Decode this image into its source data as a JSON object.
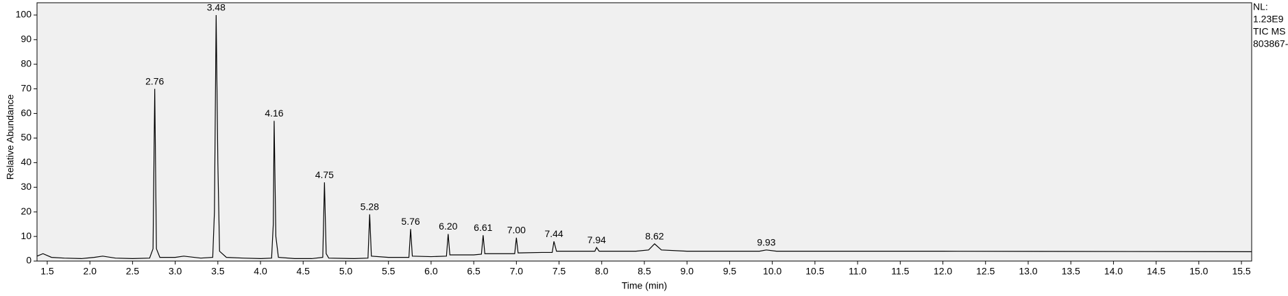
{
  "chart_data": {
    "type": "line",
    "x_label": "Time (min)",
    "y_label": "Relative Abundance",
    "side_notes": [
      "NL:",
      "1.23E9",
      "TIC  MS",
      "803867-"
    ],
    "series": [
      {
        "name": "TIC",
        "color": "#000000",
        "x": [
          1.38,
          1.45,
          1.55,
          1.7,
          1.9,
          2.05,
          2.15,
          2.3,
          2.5,
          2.7,
          2.74,
          2.76,
          2.78,
          2.82,
          3.0,
          3.1,
          3.3,
          3.44,
          3.46,
          3.48,
          3.5,
          3.52,
          3.6,
          3.8,
          4.0,
          4.13,
          4.15,
          4.16,
          4.18,
          4.21,
          4.4,
          4.6,
          4.73,
          4.75,
          4.77,
          4.8,
          5.1,
          5.26,
          5.28,
          5.3,
          5.5,
          5.74,
          5.76,
          5.78,
          6.0,
          6.18,
          6.2,
          6.22,
          6.5,
          6.59,
          6.61,
          6.63,
          6.9,
          6.98,
          7.0,
          7.02,
          7.3,
          7.42,
          7.44,
          7.47,
          7.8,
          7.92,
          7.94,
          7.97,
          8.4,
          8.55,
          8.62,
          8.7,
          9.0,
          9.5,
          9.85,
          9.93,
          10.05,
          12,
          15.62
        ],
        "values": [
          2,
          3,
          1.5,
          1.2,
          1,
          1.5,
          2,
          1.2,
          1,
          1.2,
          5,
          70,
          5,
          1.5,
          1.5,
          2,
          1.2,
          1.5,
          20,
          100,
          40,
          4,
          1.5,
          1.2,
          1,
          1.2,
          15,
          57,
          10,
          1.5,
          1,
          1,
          1.5,
          32,
          3,
          1.2,
          1,
          1.2,
          19,
          2,
          1.5,
          1.5,
          13,
          2,
          1.8,
          2,
          11,
          2.5,
          2.5,
          2.8,
          10.5,
          3,
          3,
          3,
          9.5,
          3.3,
          3.5,
          3.5,
          8,
          4,
          4,
          4,
          5.5,
          4,
          4,
          4.5,
          7,
          4.5,
          4,
          4,
          4,
          4.5,
          4,
          4,
          3.8
        ]
      }
    ],
    "annotations": [
      {
        "text": "2.76",
        "x": 2.76,
        "y": 70
      },
      {
        "text": "3.48",
        "x": 3.48,
        "y": 100
      },
      {
        "text": "4.16",
        "x": 4.16,
        "y": 57
      },
      {
        "text": "4.75",
        "x": 4.75,
        "y": 32
      },
      {
        "text": "5.28",
        "x": 5.28,
        "y": 19
      },
      {
        "text": "5.76",
        "x": 5.76,
        "y": 13
      },
      {
        "text": "6.20",
        "x": 6.2,
        "y": 11
      },
      {
        "text": "6.61",
        "x": 6.61,
        "y": 10.5
      },
      {
        "text": "7.00",
        "x": 7.0,
        "y": 9.5
      },
      {
        "text": "7.44",
        "x": 7.44,
        "y": 8
      },
      {
        "text": "7.94",
        "x": 7.94,
        "y": 5.5
      },
      {
        "text": "8.62",
        "x": 8.62,
        "y": 7
      },
      {
        "text": "9.93",
        "x": 9.93,
        "y": 4.5
      }
    ],
    "xlim": [
      1.38,
      15.62
    ],
    "ylim": [
      0,
      105
    ],
    "xticks": [
      1.5,
      {
        "value": 2,
        "label": "2.0"
      },
      2.5,
      {
        "value": 3,
        "label": "3.0"
      },
      3.5,
      {
        "value": 4,
        "label": "4.0"
      },
      4.5,
      {
        "value": 5,
        "label": "5.0"
      },
      5.5,
      {
        "value": 6,
        "label": "6.0"
      },
      6.5,
      {
        "value": 7,
        "label": "7.0"
      },
      7.5,
      {
        "value": 8,
        "label": "8.0"
      },
      8.5,
      {
        "value": 9,
        "label": "9.0"
      },
      9.5,
      {
        "value": 10,
        "label": "10.0"
      },
      10.5,
      {
        "value": 11,
        "label": "11.0"
      },
      11.5,
      {
        "value": 12,
        "label": "12.0"
      },
      12.5,
      {
        "value": 13,
        "label": "13.0"
      },
      13.5,
      {
        "value": 14,
        "label": "14.0"
      },
      14.5,
      {
        "value": 15,
        "label": "15.0"
      },
      15.5
    ],
    "yticks": [
      0,
      10,
      20,
      30,
      40,
      50,
      60,
      70,
      80,
      90,
      100
    ],
    "grid": false
  }
}
